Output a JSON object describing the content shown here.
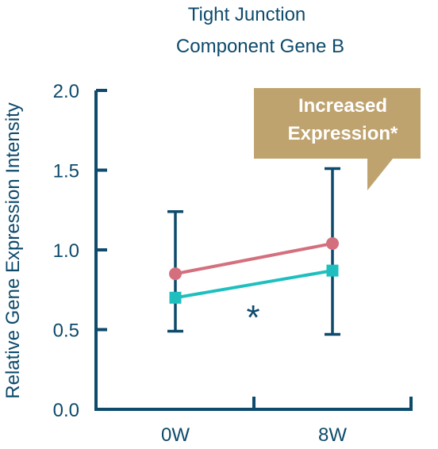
{
  "chart_data": {
    "type": "line",
    "title_lines": [
      "Tight Junction",
      "Component Gene B"
    ],
    "ylabel": "Relative Gene Expression Intensity",
    "xlabel": "",
    "categories": [
      "0W",
      "8W"
    ],
    "ylim": [
      0.0,
      2.0
    ],
    "yticks": [
      "0.0",
      "0.5",
      "1.0",
      "1.5",
      "2.0"
    ],
    "ytick_values": [
      0.0,
      0.5,
      1.0,
      1.5,
      2.0
    ],
    "grid": false,
    "series": [
      {
        "marker": "circle",
        "color": "#d4707e",
        "values": [
          0.85,
          1.04
        ]
      },
      {
        "marker": "square",
        "color": "#1fbfbf",
        "values": [
          0.7,
          0.87
        ]
      }
    ],
    "error_bars": [
      {
        "category": "0W",
        "low": 0.49,
        "high": 1.24
      },
      {
        "category": "8W",
        "low": 0.47,
        "high": 1.51
      }
    ],
    "annotation": {
      "lines": [
        "Increased",
        "Expression*"
      ],
      "color": "#bfa36f"
    },
    "significance_marker": "*",
    "axis_color": "#0d4a6b"
  }
}
